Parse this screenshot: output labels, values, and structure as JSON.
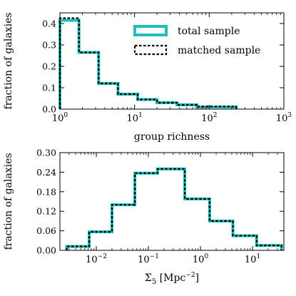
{
  "chart_data": [
    {
      "type": "histogram",
      "xscale": "log",
      "xlim": [
        1,
        1000
      ],
      "ylim": [
        0,
        0.45
      ],
      "xlabel": "group richness",
      "ylabel": "fraction of galaxies",
      "xticks": [
        {
          "value": 1,
          "base": "10",
          "exp": "0"
        },
        {
          "value": 10,
          "base": "10",
          "exp": "1"
        },
        {
          "value": 100,
          "base": "10",
          "exp": "2"
        },
        {
          "value": 1000,
          "base": "10",
          "exp": "3"
        }
      ],
      "yticks": [
        {
          "value": 0.0,
          "label": "0.0"
        },
        {
          "value": 0.1,
          "label": "0.1"
        },
        {
          "value": 0.2,
          "label": "0.2"
        },
        {
          "value": 0.3,
          "label": "0.3"
        },
        {
          "value": 0.4,
          "label": "0.4"
        }
      ],
      "legend": {
        "position": "top-right"
      },
      "series": [
        {
          "name": "total sample",
          "style": "solid",
          "color": "#1fbfbf",
          "edges": [
            1,
            1.8,
            3.3,
            6,
            11,
            20,
            37,
            68,
            125,
            230
          ],
          "values": [
            0.415,
            0.265,
            0.12,
            0.07,
            0.045,
            0.03,
            0.02,
            0.01,
            0.01
          ]
        },
        {
          "name": "matched sample",
          "style": "dashed",
          "color": "#000000",
          "edges": [
            1,
            1.8,
            3.3,
            6,
            11,
            20,
            37,
            68,
            125,
            230
          ],
          "values": [
            0.425,
            0.265,
            0.12,
            0.07,
            0.045,
            0.03,
            0.02,
            0.012,
            0.012
          ]
        }
      ]
    },
    {
      "type": "histogram",
      "xscale": "log",
      "xlim": [
        0.002,
        40
      ],
      "ylim": [
        0,
        0.3
      ],
      "xlabel": "Σ5 [Mpc−2]",
      "ylabel": "fraction of galaxies",
      "xticks": [
        {
          "value": 0.01,
          "base": "10",
          "exp": "−2"
        },
        {
          "value": 0.1,
          "base": "10",
          "exp": "−1"
        },
        {
          "value": 1,
          "base": "10",
          "exp": "0"
        },
        {
          "value": 10,
          "base": "10",
          "exp": "1"
        }
      ],
      "yticks": [
        {
          "value": 0.0,
          "label": "0.00"
        },
        {
          "value": 0.06,
          "label": "0.06"
        },
        {
          "value": 0.12,
          "label": "0.12"
        },
        {
          "value": 0.18,
          "label": "0.18"
        },
        {
          "value": 0.24,
          "label": "0.24"
        },
        {
          "value": 0.3,
          "label": "0.30"
        }
      ],
      "series": [
        {
          "name": "total sample",
          "style": "solid",
          "color": "#1fbfbf",
          "edges": [
            0.0027,
            0.0073,
            0.02,
            0.055,
            0.15,
            0.5,
            1.5,
            4.2,
            12,
            36
          ],
          "values": [
            0.012,
            0.057,
            0.14,
            0.237,
            0.25,
            0.158,
            0.09,
            0.045,
            0.015
          ]
        },
        {
          "name": "matched sample",
          "style": "dashed",
          "color": "#000000",
          "edges": [
            0.0027,
            0.0073,
            0.02,
            0.055,
            0.15,
            0.5,
            1.5,
            4.2,
            12,
            36
          ],
          "values": [
            0.012,
            0.057,
            0.14,
            0.237,
            0.25,
            0.158,
            0.09,
            0.045,
            0.015
          ]
        }
      ]
    }
  ]
}
